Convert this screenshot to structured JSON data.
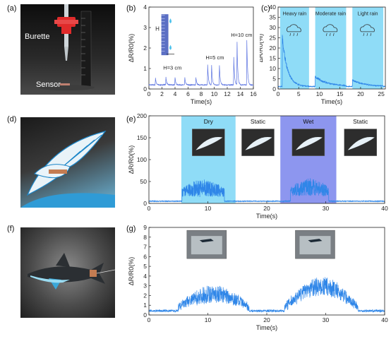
{
  "panels": {
    "a": {
      "label": "(a)",
      "annotations": [
        "Burette",
        "Sensor"
      ]
    },
    "b": {
      "label": "(b)",
      "inset_label": "H"
    },
    "c": {
      "label": "(c)"
    },
    "d": {
      "label": "(d)"
    },
    "e": {
      "label": "(e)"
    },
    "f": {
      "label": "(f)"
    },
    "g": {
      "label": "(g)"
    }
  },
  "colors": {
    "line": "#2f86e8",
    "lineB": "#5a72e0",
    "shadeCyan": "#8fdcf7",
    "shadeBlue": "#8d96ef"
  },
  "chart_data": [
    {
      "id": "b",
      "type": "line",
      "xlabel": "Time(s)",
      "ylabel": "ΔR/R0(%)",
      "xlim": [
        0,
        16
      ],
      "ylim": [
        0,
        4
      ],
      "xticks": [
        0,
        2,
        4,
        6,
        8,
        10,
        12,
        14,
        16
      ],
      "yticks": [
        0,
        1,
        2,
        3,
        4
      ],
      "baseline": 0.2,
      "peaks": [
        {
          "x": 1.0,
          "y": 0.55
        },
        {
          "x": 2.6,
          "y": 0.6
        },
        {
          "x": 4.0,
          "y": 0.55
        },
        {
          "x": 5.5,
          "y": 0.55
        },
        {
          "x": 7.2,
          "y": 0.55
        },
        {
          "x": 9.0,
          "y": 1.2
        },
        {
          "x": 9.6,
          "y": 1.15
        },
        {
          "x": 10.8,
          "y": 1.15
        },
        {
          "x": 13.0,
          "y": 1.55
        },
        {
          "x": 13.5,
          "y": 2.3
        },
        {
          "x": 15.0,
          "y": 2.4
        }
      ],
      "annotations": [
        {
          "text": "H=3 cm",
          "x": 3.6,
          "y": 0.95
        },
        {
          "text": "H=5 cm",
          "x": 10.1,
          "y": 1.45
        },
        {
          "text": "H=10 cm",
          "x": 14.2,
          "y": 2.55
        }
      ]
    },
    {
      "id": "c",
      "type": "line",
      "xlabel": "Time(s)",
      "ylabel": "ΔR/R0(%)",
      "xlim": [
        0,
        26
      ],
      "ylim": [
        0,
        40
      ],
      "xticks": [
        0,
        5,
        10,
        15,
        20,
        25
      ],
      "yticks": [
        0,
        5,
        10,
        15,
        20,
        25,
        30,
        35,
        40
      ],
      "regions": [
        {
          "label": "Heavy rain",
          "x0": 0.5,
          "x1": 7.5
        },
        {
          "label": "Moderate rain",
          "x0": 9.0,
          "x1": 16.5
        },
        {
          "label": "Light rain",
          "x0": 18.0,
          "x1": 25.5
        }
      ],
      "segments": [
        {
          "x0": 1.0,
          "x1": 7.5,
          "peak": 24,
          "decay": 1.2,
          "noise": 3.5
        },
        {
          "x0": 9.0,
          "x1": 16.5,
          "peak": 4.5,
          "decay": 3.0,
          "noise": 1.2
        },
        {
          "x0": 18.0,
          "x1": 25.5,
          "peak": 3.0,
          "decay": 3.0,
          "noise": 0.8
        }
      ],
      "baseline": 1.0
    },
    {
      "id": "e",
      "type": "line",
      "xlabel": "Time(s)",
      "ylabel": "ΔR/R0(%)",
      "xlim": [
        0,
        40
      ],
      "ylim": [
        0,
        200
      ],
      "xticks": [
        0,
        10,
        20,
        30,
        40
      ],
      "yticks": [
        0,
        50,
        100,
        150,
        200
      ],
      "regions": [
        {
          "label": "Dry",
          "x0": 5.5,
          "x1": 14.7,
          "color": "shadeCyan"
        },
        {
          "label": "Static",
          "x0": 14.7,
          "x1": 22.3,
          "color": null
        },
        {
          "label": "Wet",
          "x0": 22.3,
          "x1": 31.8,
          "color": "shadeBlue"
        },
        {
          "label": "Static",
          "x0": 31.8,
          "x1": 40,
          "color": null
        }
      ],
      "segments": [
        {
          "x0": 5.6,
          "x1": 12.8,
          "mean": 25,
          "amp": 40
        },
        {
          "x0": 24.0,
          "x1": 30.5,
          "mean": 30,
          "amp": 40
        }
      ],
      "baseline": 4
    },
    {
      "id": "g",
      "type": "line",
      "xlabel": "Time(s)",
      "ylabel": "ΔR/R0(%)",
      "xlim": [
        0,
        40
      ],
      "ylim": [
        0,
        9
      ],
      "xticks": [
        0,
        10,
        20,
        30,
        40
      ],
      "yticks": [
        0,
        1,
        2,
        3,
        4,
        5,
        6,
        7,
        8,
        9
      ],
      "segments": [
        {
          "x0": 5.0,
          "x1": 17.0,
          "mean": 1.4,
          "amp": 1.8
        },
        {
          "x0": 23.0,
          "x1": 35.5,
          "mean": 2.6,
          "amp": 1.9
        }
      ],
      "baseline": 0.3
    }
  ]
}
